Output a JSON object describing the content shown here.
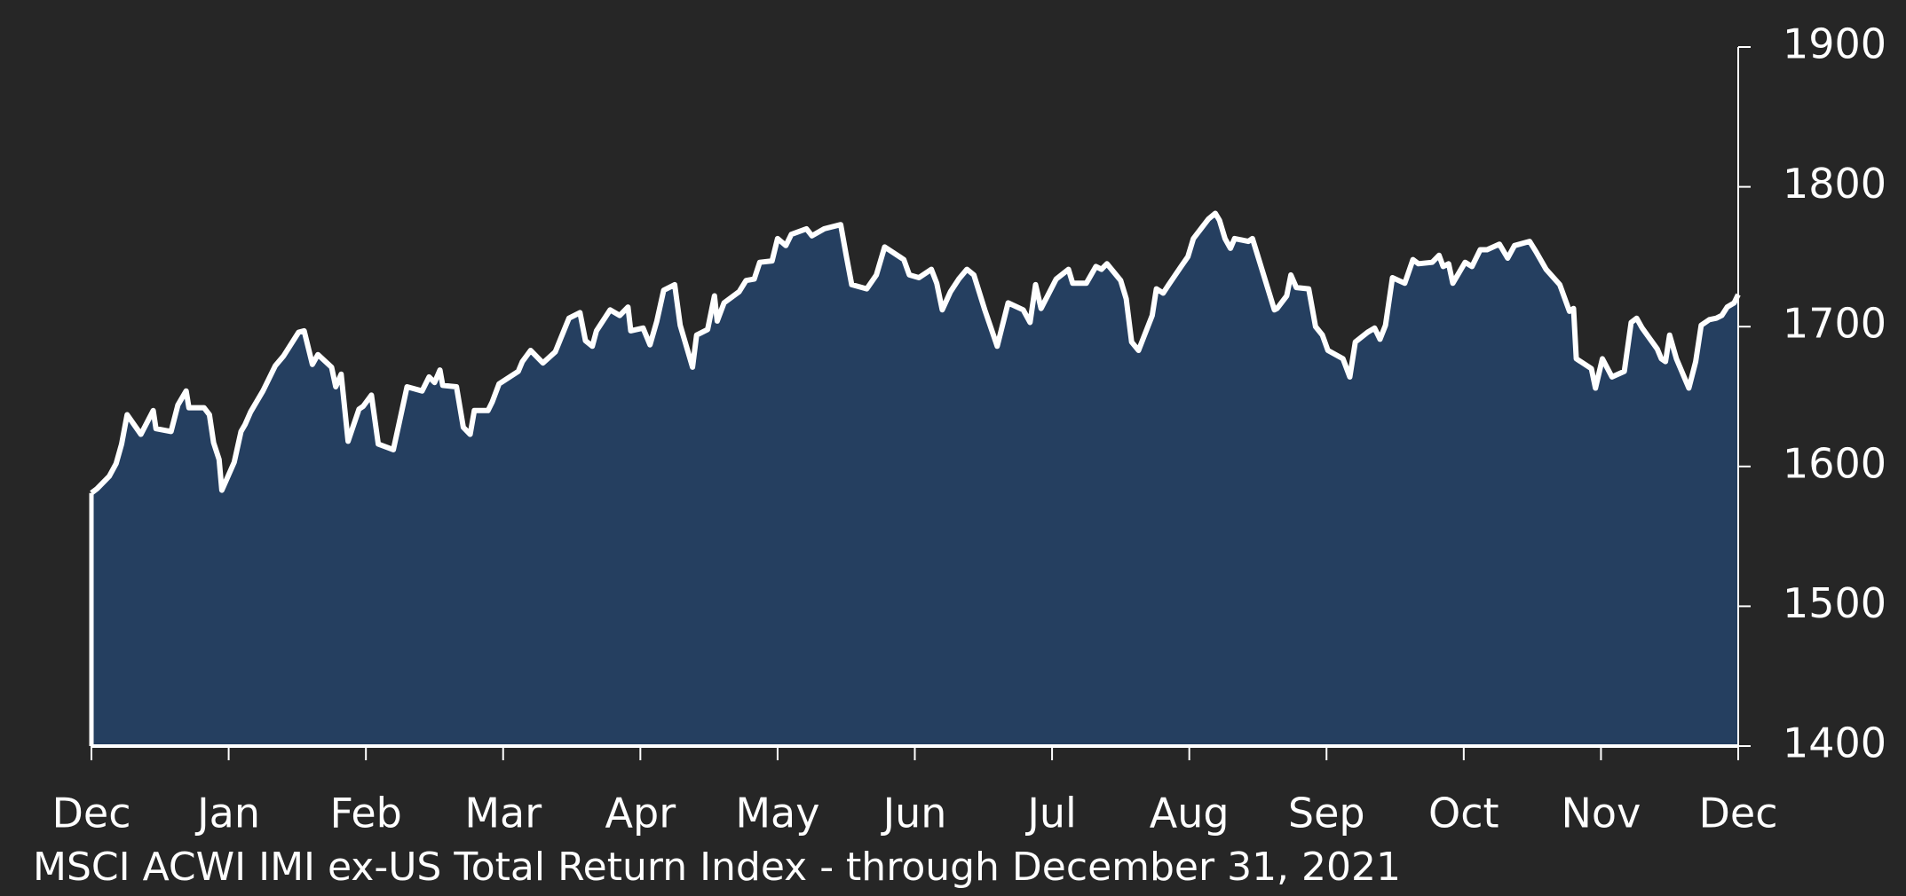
{
  "chart_data": {
    "type": "area",
    "title": "MSCI ACWI IMI ex-US Total Return Index - through December 31, 2021",
    "color": "#253f60",
    "line_color": "#ffffff",
    "xlim": [
      0,
      12
    ],
    "xticks": [
      {
        "value": 0,
        "label": "Dec"
      },
      {
        "value": 1,
        "label": "Jan"
      },
      {
        "value": 2,
        "label": "Feb"
      },
      {
        "value": 3,
        "label": "Mar"
      },
      {
        "value": 4,
        "label": "Apr"
      },
      {
        "value": 5,
        "label": "May"
      },
      {
        "value": 6,
        "label": "Jun"
      },
      {
        "value": 7,
        "label": "Jul"
      },
      {
        "value": 8,
        "label": "Aug"
      },
      {
        "value": 9,
        "label": "Sep"
      },
      {
        "value": 10,
        "label": "Oct"
      },
      {
        "value": 11,
        "label": "Nov"
      },
      {
        "value": 12,
        "label": "Dec"
      }
    ],
    "ylim": [
      1400,
      1900
    ],
    "yticks": [
      1400,
      1500,
      1600,
      1700,
      1800,
      1900
    ],
    "x": [
      0,
      0.04,
      0.13,
      0.18,
      0.22,
      0.26,
      0.36,
      0.45,
      0.47,
      0.58,
      0.63,
      0.69,
      0.71,
      0.82,
      0.86,
      0.89,
      0.93,
      0.95,
      1.04,
      1.09,
      1.12,
      1.16,
      1.25,
      1.34,
      1.4,
      1.51,
      1.55,
      1.61,
      1.65,
      1.75,
      1.78,
      1.82,
      1.87,
      1.95,
      1.98,
      2.04,
      2.09,
      2.2,
      2.24,
      2.3,
      2.41,
      2.46,
      2.5,
      2.54,
      2.56,
      2.66,
      2.71,
      2.76,
      2.79,
      2.89,
      2.92,
      2.97,
      3.11,
      3.14,
      3.2,
      3.29,
      3.38,
      3.48,
      3.56,
      3.6,
      3.65,
      3.68,
      3.78,
      3.85,
      3.91,
      3.93,
      4.02,
      4.07,
      4.12,
      4.17,
      4.25,
      4.29,
      4.38,
      4.41,
      4.49,
      4.54,
      4.56,
      4.61,
      4.72,
      4.77,
      4.83,
      4.87,
      4.96,
      5.0,
      5.06,
      5.1,
      5.21,
      5.25,
      5.34,
      5.46,
      5.5,
      5.54,
      5.65,
      5.72,
      5.78,
      5.92,
      5.96,
      6.03,
      6.12,
      6.16,
      6.2,
      6.26,
      6.32,
      6.38,
      6.43,
      6.51,
      6.59,
      6.6,
      6.68,
      6.79,
      6.84,
      6.88,
      6.92,
      7.03,
      7.12,
      7.15,
      7.25,
      7.32,
      7.36,
      7.4,
      7.5,
      7.54,
      7.58,
      7.63,
      7.73,
      7.76,
      7.81,
      7.85,
      7.94,
      7.99,
      8.03,
      8.14,
      8.19,
      8.22,
      8.26,
      8.3,
      8.33,
      8.43,
      8.46,
      8.62,
      8.64,
      8.71,
      8.74,
      8.78,
      8.87,
      8.92,
      8.97,
      9.01,
      9.12,
      9.17,
      9.21,
      9.3,
      9.35,
      9.39,
      9.43,
      9.48,
      9.57,
      9.63,
      9.67,
      9.77,
      9.82,
      9.85,
      9.89,
      9.92,
      10.01,
      10.06,
      10.12,
      10.17,
      10.26,
      10.32,
      10.37,
      10.48,
      10.53,
      10.6,
      10.7,
      10.77,
      10.8,
      10.82,
      10.93,
      10.96,
      11.01,
      11.08,
      11.17,
      11.22,
      11.26,
      11.3,
      11.41,
      11.44,
      11.47,
      11.5,
      11.55,
      11.64,
      11.69,
      11.73,
      11.79,
      11.84,
      11.88,
      11.92,
      11.97,
      12.0
    ],
    "values": [
      1581,
      1584,
      1593,
      1602,
      1616,
      1637,
      1623,
      1640,
      1627,
      1625,
      1644,
      1654,
      1642,
      1642,
      1637,
      1617,
      1605,
      1583,
      1603,
      1625,
      1630,
      1639,
      1654,
      1672,
      1679,
      1696,
      1697,
      1673,
      1680,
      1671,
      1657,
      1666,
      1618,
      1641,
      1643,
      1651,
      1616,
      1612,
      1630,
      1657,
      1654,
      1664,
      1660,
      1669,
      1658,
      1657,
      1628,
      1623,
      1640,
      1640,
      1646,
      1659,
      1668,
      1675,
      1683,
      1674,
      1682,
      1706,
      1710,
      1690,
      1686,
      1697,
      1712,
      1708,
      1714,
      1697,
      1699,
      1687,
      1704,
      1726,
      1730,
      1701,
      1671,
      1694,
      1698,
      1722,
      1704,
      1717,
      1725,
      1733,
      1734,
      1746,
      1747,
      1763,
      1758,
      1766,
      1770,
      1765,
      1770,
      1773,
      1751,
      1730,
      1727,
      1737,
      1757,
      1748,
      1737,
      1735,
      1741,
      1731,
      1712,
      1725,
      1734,
      1741,
      1737,
      1712,
      1689,
      1686,
      1717,
      1712,
      1703,
      1730,
      1713,
      1734,
      1741,
      1731,
      1731,
      1743,
      1741,
      1745,
      1733,
      1720,
      1689,
      1683,
      1708,
      1727,
      1724,
      1730,
      1743,
      1750,
      1763,
      1777,
      1781,
      1776,
      1763,
      1756,
      1763,
      1761,
      1763,
      1712,
      1713,
      1722,
      1737,
      1728,
      1727,
      1700,
      1694,
      1683,
      1677,
      1664,
      1689,
      1696,
      1699,
      1691,
      1701,
      1735,
      1731,
      1748,
      1745,
      1746,
      1751,
      1743,
      1745,
      1731,
      1746,
      1743,
      1755,
      1755,
      1759,
      1749,
      1758,
      1761,
      1753,
      1741,
      1730,
      1711,
      1713,
      1677,
      1670,
      1656,
      1677,
      1664,
      1668,
      1703,
      1706,
      1699,
      1684,
      1677,
      1675,
      1694,
      1677,
      1656,
      1675,
      1701,
      1705,
      1706,
      1708,
      1714,
      1717,
      1723
    ]
  }
}
